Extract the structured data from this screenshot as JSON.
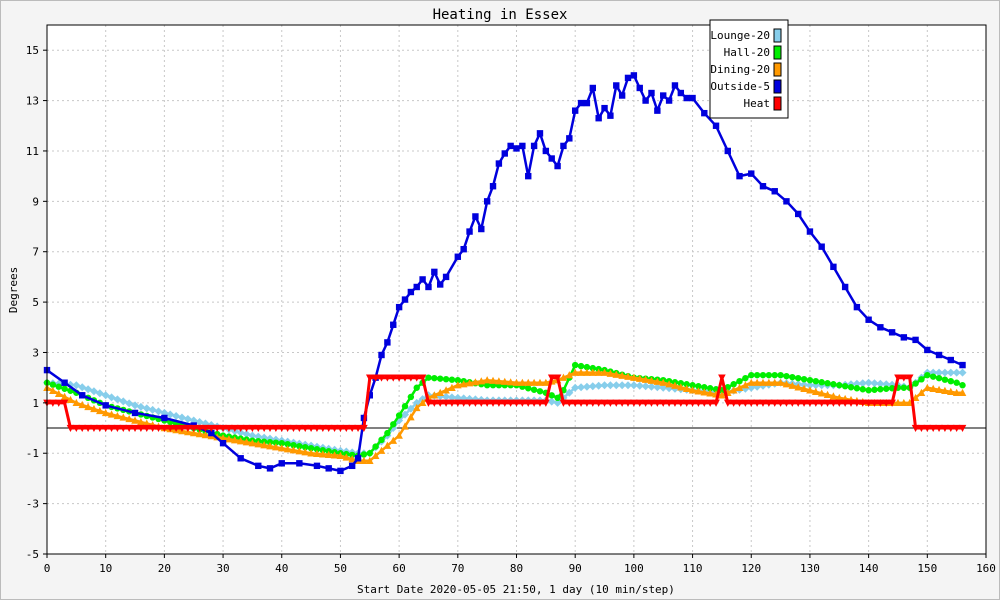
{
  "chart_data": {
    "type": "line",
    "title": "Heating in Essex",
    "xlabel": "Start Date 2020-05-05 21:50, 1 day (10 min/step)",
    "ylabel": "Degrees",
    "xlim": [
      0,
      160
    ],
    "ylim": [
      -5,
      16
    ],
    "x_ticks": [
      0,
      10,
      20,
      30,
      40,
      50,
      60,
      70,
      80,
      90,
      100,
      110,
      120,
      130,
      140,
      150,
      160
    ],
    "y_ticks": [
      -5,
      -3,
      -1,
      1,
      3,
      5,
      7,
      9,
      11,
      13,
      15
    ],
    "grid": true,
    "zero_line": true,
    "legend_position": "top-right",
    "series": [
      {
        "name": "Lounge-20",
        "color": "#87ceeb",
        "marker": "diamond",
        "x": [
          0,
          5,
          10,
          15,
          20,
          25,
          30,
          35,
          40,
          45,
          50,
          53,
          55,
          58,
          60,
          63,
          65,
          70,
          75,
          80,
          85,
          87,
          88,
          90,
          95,
          100,
          105,
          110,
          115,
          120,
          125,
          130,
          135,
          140,
          145,
          147,
          150,
          155,
          156
        ],
        "y": [
          1.8,
          1.7,
          1.3,
          0.9,
          0.6,
          0.3,
          0.0,
          -0.3,
          -0.5,
          -0.7,
          -0.9,
          -1.0,
          -1.0,
          -0.3,
          0.3,
          1.0,
          1.3,
          1.2,
          1.1,
          1.1,
          1.1,
          1.0,
          1.2,
          1.6,
          1.7,
          1.7,
          1.6,
          1.5,
          1.4,
          1.6,
          1.8,
          1.7,
          1.7,
          1.8,
          1.7,
          1.6,
          2.2,
          2.2,
          2.2
        ]
      },
      {
        "name": "Hall-20",
        "color": "#00ee00",
        "marker": "circle",
        "x": [
          0,
          5,
          10,
          15,
          20,
          25,
          30,
          35,
          40,
          45,
          50,
          53,
          55,
          58,
          60,
          63,
          65,
          70,
          75,
          80,
          85,
          87,
          88,
          90,
          95,
          100,
          105,
          110,
          115,
          120,
          125,
          130,
          135,
          140,
          145,
          147,
          150,
          155,
          156
        ],
        "y": [
          1.8,
          1.4,
          0.9,
          0.6,
          0.3,
          0.0,
          -0.3,
          -0.5,
          -0.6,
          -0.8,
          -1.0,
          -1.1,
          -1.0,
          -0.2,
          0.5,
          1.6,
          2.0,
          1.9,
          1.7,
          1.7,
          1.4,
          1.2,
          1.5,
          2.5,
          2.3,
          2.0,
          1.9,
          1.7,
          1.5,
          2.1,
          2.1,
          1.9,
          1.7,
          1.5,
          1.6,
          1.6,
          2.1,
          1.8,
          1.7
        ]
      },
      {
        "name": "Dining-20",
        "color": "#ff9900",
        "marker": "triangle-up",
        "x": [
          0,
          5,
          10,
          15,
          20,
          25,
          30,
          35,
          40,
          45,
          50,
          53,
          55,
          58,
          60,
          63,
          65,
          70,
          75,
          80,
          85,
          87,
          88,
          90,
          95,
          100,
          105,
          110,
          115,
          120,
          125,
          130,
          135,
          140,
          145,
          147,
          150,
          155,
          156
        ],
        "y": [
          1.6,
          1.0,
          0.6,
          0.3,
          0.0,
          -0.2,
          -0.4,
          -0.6,
          -0.8,
          -1.0,
          -1.1,
          -1.3,
          -1.3,
          -0.7,
          -0.3,
          0.8,
          1.2,
          1.7,
          1.9,
          1.8,
          1.8,
          1.9,
          2.0,
          2.2,
          2.2,
          2.0,
          1.8,
          1.5,
          1.3,
          1.8,
          1.8,
          1.5,
          1.2,
          1.0,
          1.0,
          1.0,
          1.6,
          1.4,
          1.4
        ]
      },
      {
        "name": "Outside-5",
        "color": "#0000dd",
        "marker": "square",
        "x": [
          0,
          3,
          6,
          10,
          15,
          20,
          25,
          28,
          30,
          33,
          36,
          38,
          40,
          43,
          46,
          48,
          50,
          52,
          53,
          54,
          55,
          56,
          57,
          58,
          59,
          60,
          61,
          62,
          63,
          64,
          65,
          66,
          67,
          68,
          70,
          71,
          72,
          73,
          74,
          75,
          76,
          77,
          78,
          79,
          80,
          81,
          82,
          83,
          84,
          85,
          86,
          87,
          88,
          89,
          90,
          91,
          92,
          93,
          94,
          95,
          96,
          97,
          98,
          99,
          100,
          101,
          102,
          103,
          104,
          105,
          106,
          107,
          108,
          109,
          110,
          112,
          114,
          116,
          118,
          120,
          122,
          124,
          126,
          128,
          130,
          132,
          134,
          136,
          138,
          140,
          142,
          144,
          146,
          148,
          150,
          152,
          154,
          156
        ],
        "y": [
          2.3,
          1.8,
          1.3,
          0.9,
          0.6,
          0.4,
          0.1,
          -0.2,
          -0.6,
          -1.2,
          -1.5,
          -1.6,
          -1.4,
          -1.4,
          -1.5,
          -1.6,
          -1.7,
          -1.5,
          -1.2,
          0.4,
          1.3,
          2.0,
          2.9,
          3.4,
          4.1,
          4.8,
          5.1,
          5.4,
          5.6,
          5.9,
          5.6,
          6.2,
          5.7,
          6.0,
          6.8,
          7.1,
          7.8,
          8.4,
          7.9,
          9.0,
          9.6,
          10.5,
          10.9,
          11.2,
          11.1,
          11.2,
          10.0,
          11.2,
          11.7,
          11.0,
          10.7,
          10.4,
          11.2,
          11.5,
          12.6,
          12.9,
          12.9,
          13.5,
          12.3,
          12.7,
          12.4,
          13.6,
          13.2,
          13.9,
          14.0,
          13.5,
          13.0,
          13.3,
          12.6,
          13.2,
          13.0,
          13.6,
          13.3,
          13.1,
          13.1,
          12.5,
          12.0,
          11.0,
          10.0,
          10.1,
          9.6,
          9.4,
          9.0,
          8.5,
          7.8,
          7.2,
          6.4,
          5.6,
          4.8,
          4.3,
          4.0,
          3.8,
          3.6,
          3.5,
          3.1,
          2.9,
          2.7,
          2.5
        ]
      },
      {
        "name": "Heat",
        "color": "#ff0000",
        "marker": "triangle-down",
        "x": [
          0,
          3,
          4,
          10,
          20,
          30,
          40,
          50,
          54,
          55,
          60,
          64,
          65,
          70,
          80,
          85,
          86,
          87,
          88,
          95,
          105,
          114,
          115,
          116,
          125,
          135,
          144,
          145,
          146,
          147,
          148,
          150,
          156
        ],
        "y": [
          1,
          1,
          0,
          0,
          0,
          0,
          0,
          0,
          0,
          2,
          2,
          2,
          1,
          1,
          1,
          1,
          2,
          2,
          1,
          1,
          1,
          1,
          2,
          1,
          1,
          1,
          1,
          2,
          2,
          2,
          0,
          0,
          0
        ]
      }
    ]
  }
}
